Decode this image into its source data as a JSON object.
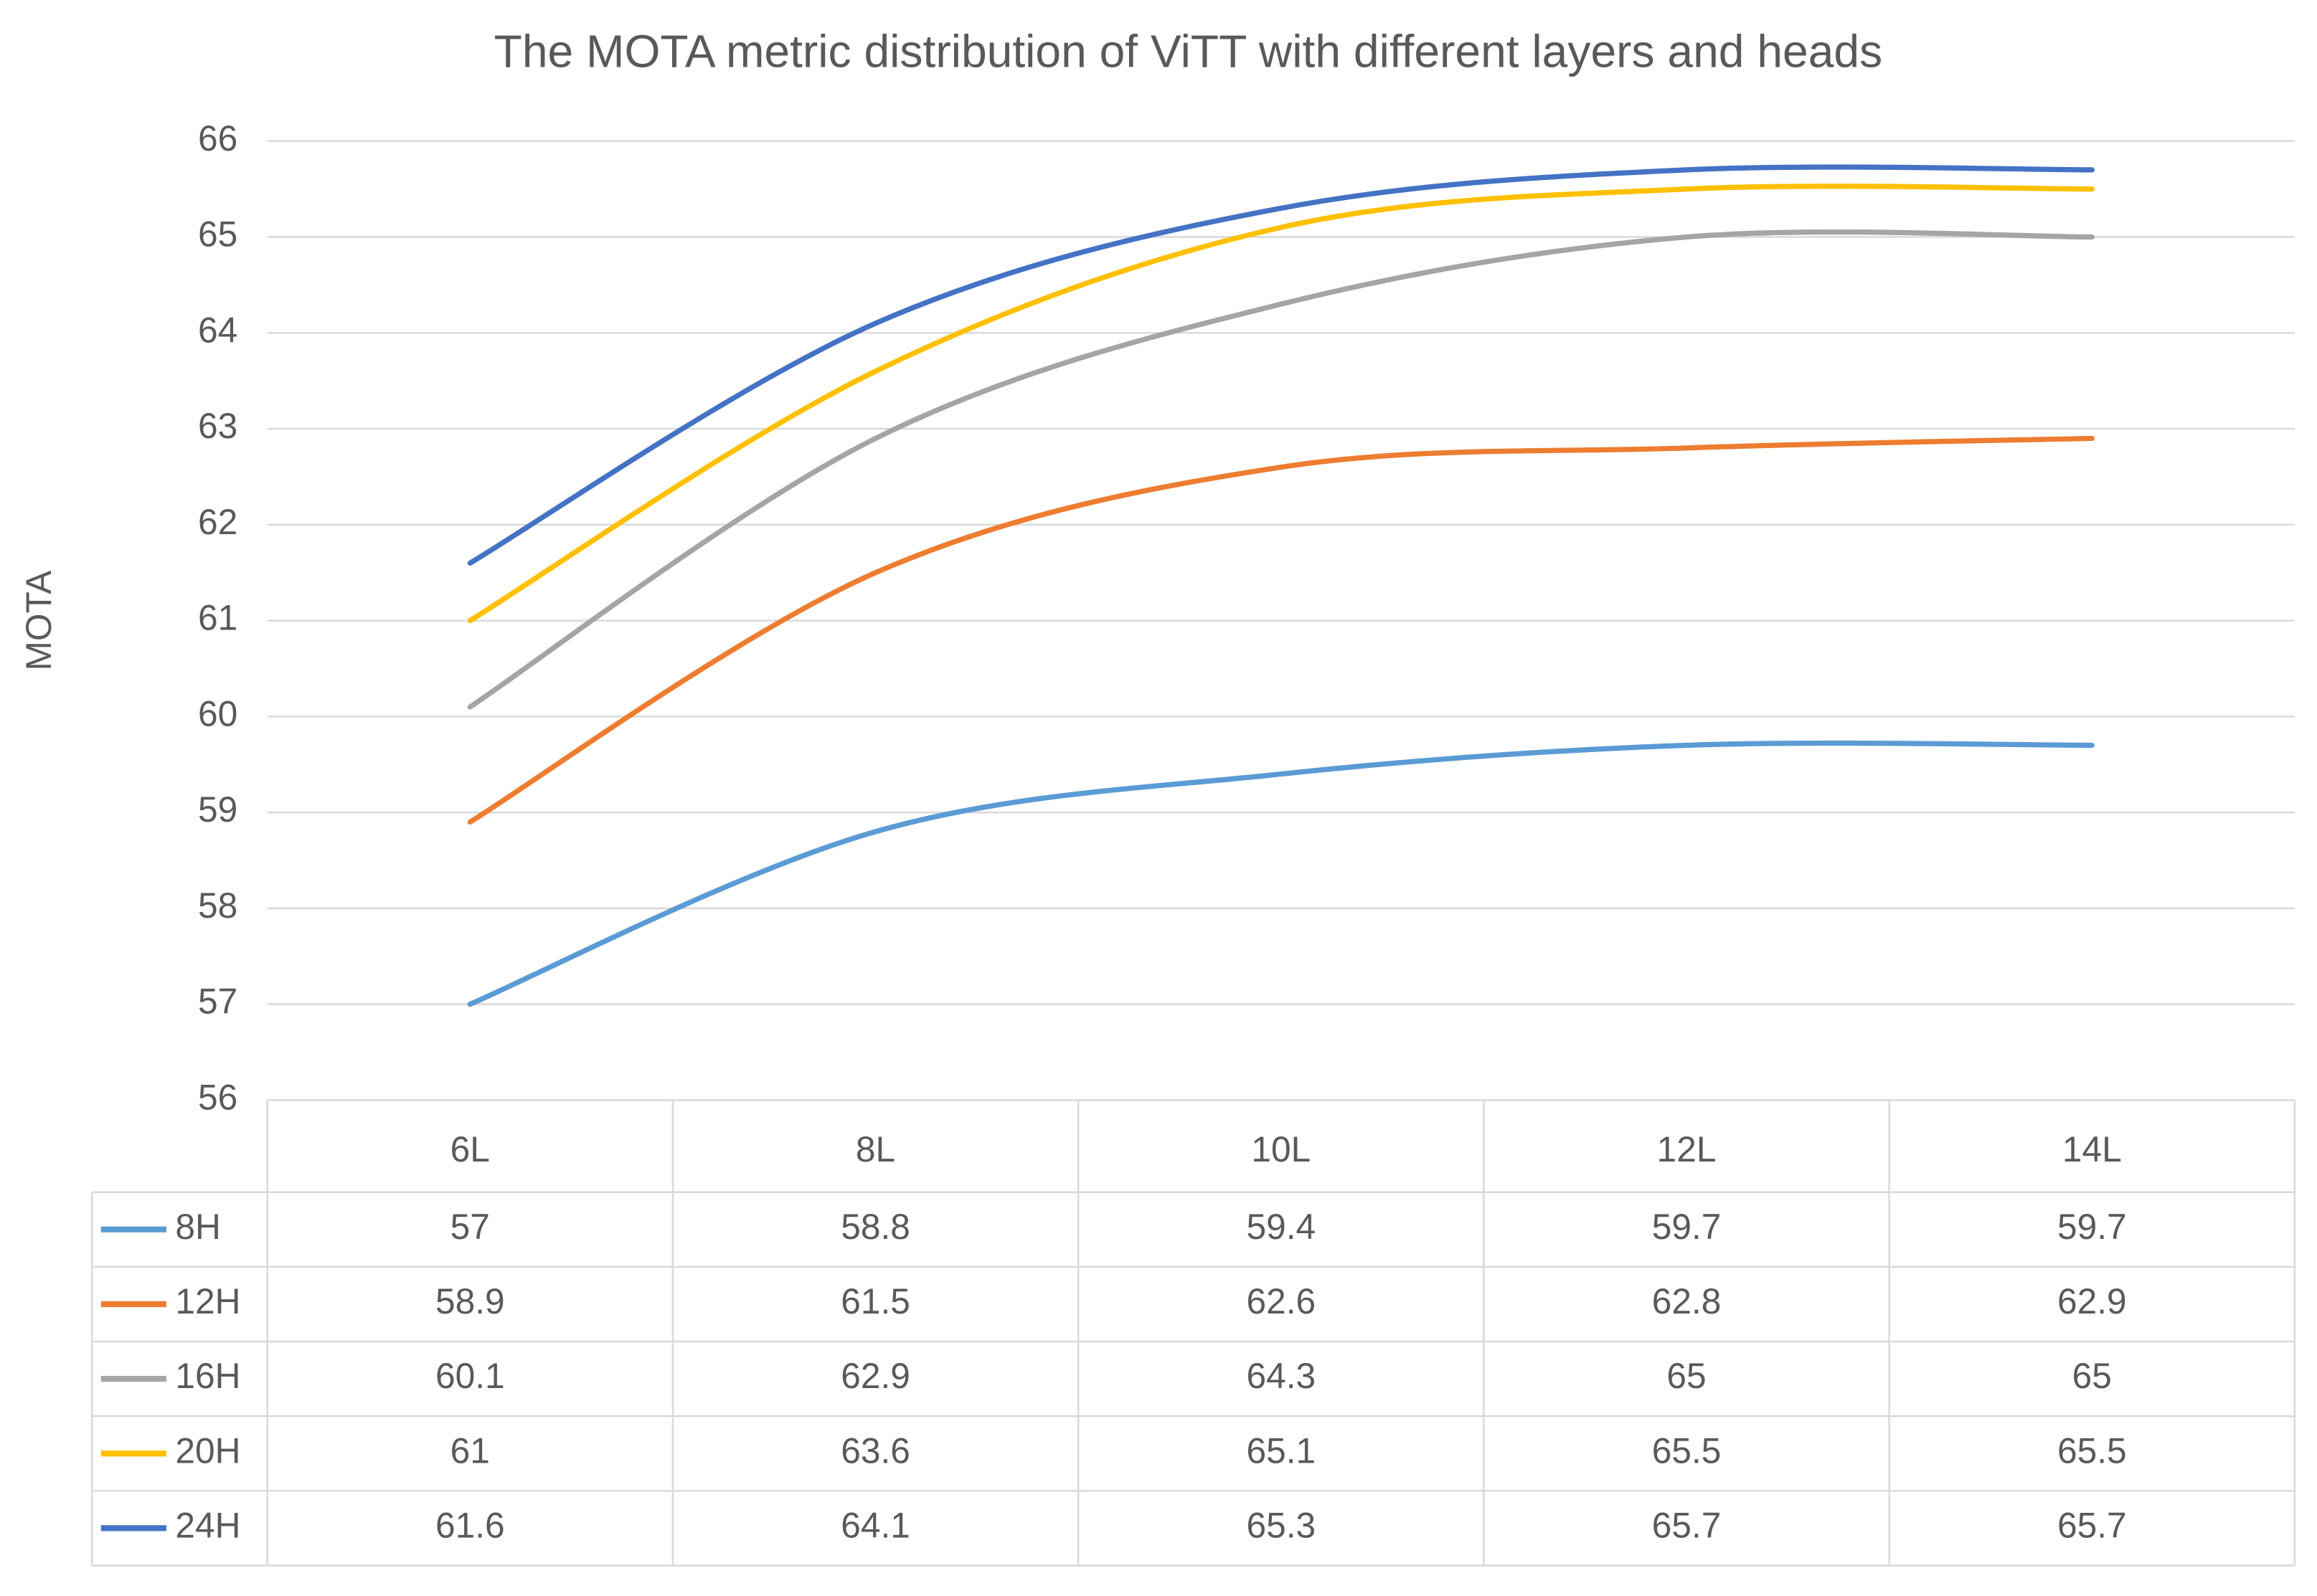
{
  "chart_data": {
    "type": "line",
    "title": "The MOTA metric distribution of ViTT with different layers and heads",
    "y_label": "MOTA",
    "categories": [
      "6L",
      "8L",
      "10L",
      "12L",
      "14L"
    ],
    "series": [
      {
        "name": "8H",
        "color": "#5b9bd5",
        "values": [
          57,
          58.8,
          59.4,
          59.7,
          59.7
        ]
      },
      {
        "name": "12H",
        "color": "#ed7d31",
        "values": [
          58.9,
          61.5,
          62.6,
          62.8,
          62.9
        ]
      },
      {
        "name": "16H",
        "color": "#a5a5a5",
        "values": [
          60.1,
          62.9,
          64.3,
          65,
          65
        ]
      },
      {
        "name": "20H",
        "color": "#ffc000",
        "values": [
          61,
          63.6,
          65.1,
          65.5,
          65.5
        ]
      },
      {
        "name": "24H",
        "color": "#4472c4",
        "values": [
          61.6,
          64.1,
          65.3,
          65.7,
          65.7
        ]
      }
    ],
    "ylim": [
      56,
      66
    ],
    "yticks": [
      56,
      57,
      58,
      59,
      60,
      61,
      62,
      63,
      64,
      65,
      66
    ],
    "grid": true,
    "smooth": true,
    "data_table": true
  }
}
